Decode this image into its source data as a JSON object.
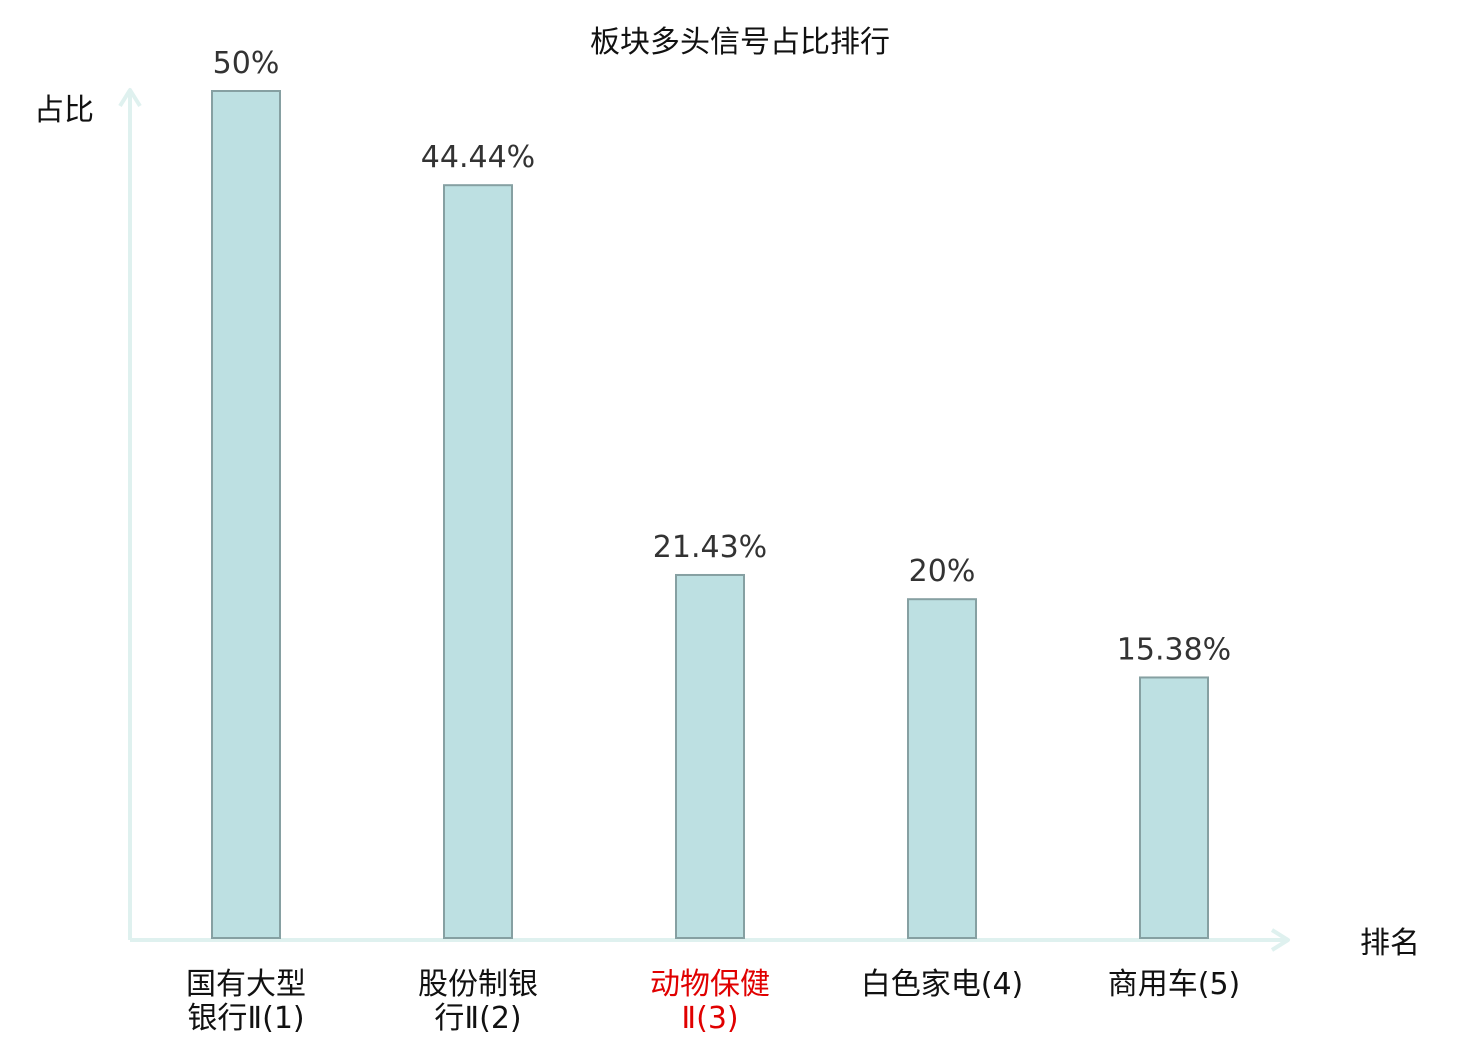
{
  "chart_data": {
    "type": "bar",
    "title": "板块多头信号占比排行",
    "ylabel": "占比",
    "xlabel": "排名",
    "categories": [
      [
        "国有大型",
        "银行Ⅱ(1)"
      ],
      [
        "股份制银",
        "行Ⅱ(2)"
      ],
      [
        "动物保健",
        "Ⅱ(3)"
      ],
      [
        "白色家电(4)"
      ],
      [
        "商用车(5)"
      ]
    ],
    "highlight_index": 2,
    "values": [
      50,
      44.44,
      21.43,
      20,
      15.38
    ],
    "value_labels": [
      "50%",
      "44.44%",
      "21.43%",
      "20%",
      "15.38%"
    ],
    "ylim": [
      0,
      50
    ],
    "grid": false,
    "legend": "none"
  },
  "colors": {
    "bar_fill": "#bde0e2",
    "bar_stroke": "#86a0a2",
    "axis": "#dff1ef",
    "text": "#333333",
    "label": "#111111",
    "highlight": "#e00000"
  }
}
